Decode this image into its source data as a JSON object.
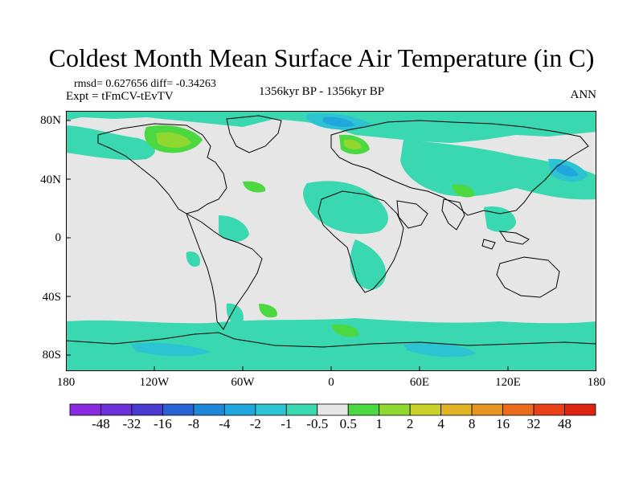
{
  "title": "Coldest Month Mean Surface Air Temperature (in C)",
  "stats": "rmsd= 0.627656  diff= -0.34263",
  "expt": "Expt = tFmCV-tEvTV",
  "period": "1356kyr BP - 1356kyr BP",
  "season": "ANN",
  "axes": {
    "lat_ticks": [
      "80N",
      "40N",
      "0",
      "40S",
      "80S"
    ],
    "lon_ticks": [
      "180",
      "120W",
      "60W",
      "0",
      "60E",
      "120E",
      "180"
    ]
  },
  "colorbar": {
    "labels": [
      "-48",
      "-32",
      "-16",
      "-8",
      "-4",
      "-2",
      "-1",
      "-0.5",
      "0.5",
      "1",
      "2",
      "4",
      "8",
      "16",
      "32",
      "48"
    ],
    "colors": [
      "#8a2be2",
      "#6a32d8",
      "#4b3ad0",
      "#2a62d4",
      "#1e88d8",
      "#20a8de",
      "#2cc4d2",
      "#3ad8b0",
      "#e6e6e6",
      "#4cd840",
      "#90d830",
      "#c8d22a",
      "#e0b424",
      "#e89420",
      "#ec6c1c",
      "#e84018",
      "#dc2410"
    ]
  },
  "map_colors": {
    "background": "#e6e6e6",
    "coastline": "#000000"
  }
}
